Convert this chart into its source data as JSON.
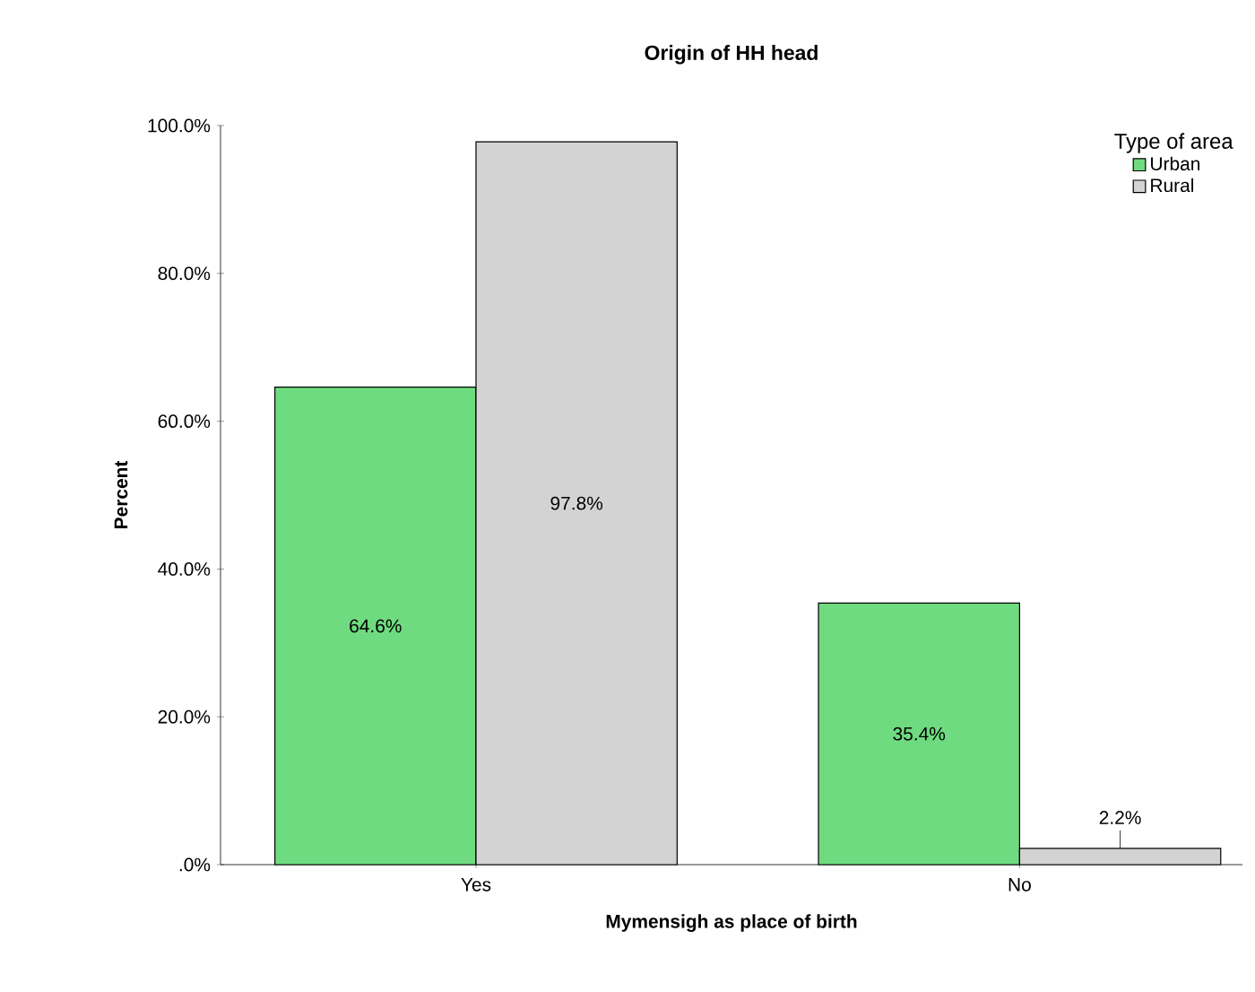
{
  "chart_data": {
    "type": "bar",
    "title": "Origin of HH head",
    "xlabel": "Mymensigh as place of birth",
    "ylabel": "Percent",
    "legend_title": "Type of area",
    "legend": "top right",
    "categories": [
      "Yes",
      "No"
    ],
    "series": [
      {
        "name": "Urban",
        "color": "#6fdb80",
        "values": [
          64.6,
          35.4
        ],
        "value_labels": [
          "64.6%",
          "35.4%"
        ]
      },
      {
        "name": "Rural",
        "color": "#d3d3d3",
        "values": [
          97.8,
          2.2
        ],
        "value_labels": [
          "97.8%",
          "2.2%"
        ]
      }
    ],
    "ylim": [
      0,
      100
    ],
    "yticks": [
      {
        "value": 0,
        "label": ".0%"
      },
      {
        "value": 20,
        "label": "20.0%"
      },
      {
        "value": 40,
        "label": "40.0%"
      },
      {
        "value": 60,
        "label": "60.0%"
      },
      {
        "value": 80,
        "label": "80.0%"
      },
      {
        "value": 100,
        "label": "100.0%"
      }
    ]
  }
}
